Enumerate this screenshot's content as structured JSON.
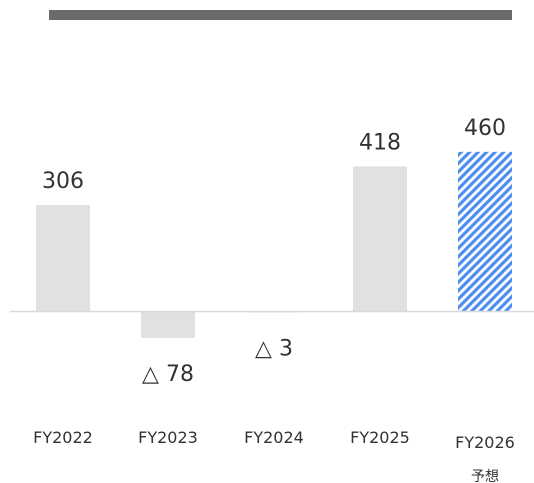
{
  "chart_data": {
    "type": "bar",
    "categories": [
      "FY2022",
      "FY2023",
      "FY2024",
      "FY2025",
      "FY2026"
    ],
    "category_sublabels": [
      "",
      "",
      "",
      "",
      "予想"
    ],
    "values": [
      306,
      -78,
      -3,
      418,
      460
    ],
    "value_labels": [
      "306",
      "△ 78",
      "△ 3",
      "418",
      "460"
    ],
    "forecast": [
      false,
      false,
      false,
      false,
      true
    ],
    "colors": {
      "actual": "#e1e1e1",
      "forecast": "#4f8ef0",
      "baseline": "#d9d9d9",
      "header_bar": "#6a6a6a"
    },
    "grid": false,
    "legend": "none"
  }
}
